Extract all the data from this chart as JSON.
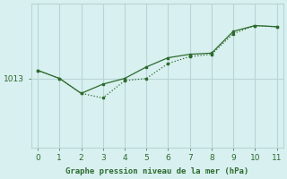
{
  "line1_x": [
    0,
    1,
    2,
    3,
    4,
    5,
    6,
    7,
    8,
    9,
    10,
    11
  ],
  "line1_y": [
    1013.7,
    1013.0,
    1011.7,
    1011.3,
    1012.8,
    1013.0,
    1014.3,
    1014.9,
    1015.1,
    1016.9,
    1017.6,
    1017.5
  ],
  "line2_x": [
    0,
    1,
    2,
    3,
    4,
    5,
    6,
    7,
    8,
    9,
    10,
    11
  ],
  "line2_y": [
    1013.7,
    1013.0,
    1011.7,
    1012.5,
    1013.0,
    1014.0,
    1014.8,
    1015.1,
    1015.2,
    1017.1,
    1017.6,
    1017.5
  ],
  "line_color": "#2d6a2d",
  "bg_color": "#d8f0f0",
  "grid_color": "#b8d4d4",
  "xlabel": "Graphe pression niveau de la mer (hPa)",
  "ytick_label": "1013",
  "ytick_value": 1013.0,
  "xlim": [
    -0.3,
    11.3
  ],
  "ylim": [
    1007.0,
    1019.5
  ],
  "xticks": [
    0,
    1,
    2,
    3,
    4,
    5,
    6,
    7,
    8,
    9,
    10,
    11
  ]
}
